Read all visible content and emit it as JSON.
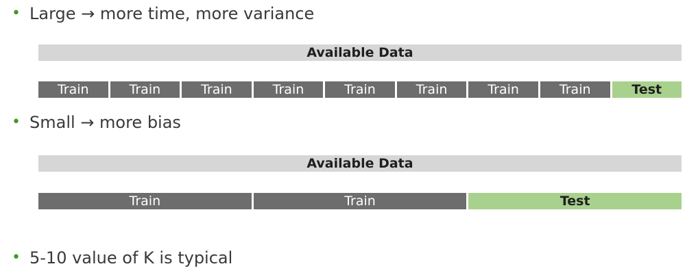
{
  "bullets": {
    "large": "Large → more time, more variance",
    "small": "Small → more bias",
    "typical": "5-10 value of K is typical"
  },
  "bullet_glyph": "•",
  "diagram_large": {
    "available_label": "Available Data",
    "segments": [
      "Train",
      "Train",
      "Train",
      "Train",
      "Train",
      "Train",
      "Train",
      "Train",
      "Test"
    ]
  },
  "diagram_small": {
    "available_label": "Available Data",
    "segments": [
      "Train",
      "Train",
      "Test"
    ]
  },
  "colors": {
    "bullet_green": "#3f9a1f",
    "available_bar": "#d6d6d6",
    "train_fill": "#6d6d6d",
    "test_fill": "#a9d18e"
  }
}
